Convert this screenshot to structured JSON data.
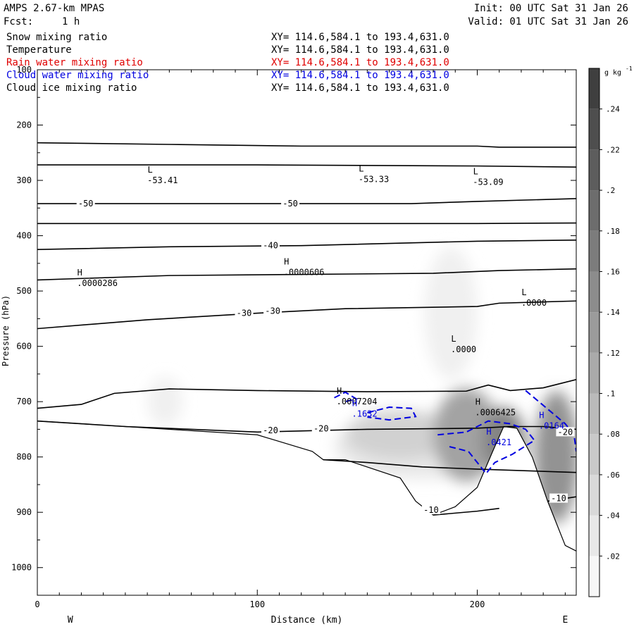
{
  "header": {
    "model": "AMPS 2.67-km MPAS",
    "forecast_label": "Fcst:",
    "forecast_value": "1 h",
    "init": "Init: 00 UTC Sat 31 Jan 26",
    "valid": "Valid: 01 UTC Sat 31 Jan 26"
  },
  "variables": [
    {
      "name": "Snow mixing ratio",
      "xy": "XY= 114.6,584.1 to 193.4,631.0",
      "color": "#000000"
    },
    {
      "name": "Temperature",
      "xy": "XY= 114.6,584.1 to 193.4,631.0",
      "color": "#000000"
    },
    {
      "name": "Rain water mixing ratio",
      "xy": "XY= 114.6,584.1 to 193.4,631.0",
      "color": "#e00000"
    },
    {
      "name": "Cloud water mixing ratio",
      "xy": "XY= 114.6,584.1 to 193.4,631.0",
      "color": "#0000e0"
    },
    {
      "name": "Cloud ice mixing ratio",
      "xy": "XY= 114.6,584.1 to 193.4,631.0",
      "color": "#000000"
    }
  ],
  "chart_data": {
    "type": "contour-cross-section",
    "xlabel": "Distance (km)",
    "ylabel": "Pressure (hPa)",
    "xlim": [
      0,
      245
    ],
    "ylim": [
      1050,
      100
    ],
    "x_ticks": [
      "0",
      "100",
      "200"
    ],
    "x_tick_values": [
      0,
      100,
      200
    ],
    "y_ticks": [
      "100",
      "200",
      "300",
      "400",
      "500",
      "600",
      "700",
      "800",
      "900",
      "1000"
    ],
    "y_tick_values": [
      100,
      200,
      300,
      400,
      500,
      600,
      700,
      800,
      900,
      1000
    ],
    "x_end_labels": {
      "left": "W",
      "right": "E"
    },
    "colorbar": {
      "unit": "g kg",
      "unit_exp": "-1",
      "vmax": 0.26,
      "tick_labels": [
        ".02",
        ".04",
        ".06",
        ".08",
        ".1",
        ".12",
        ".14",
        ".16",
        ".18",
        ".2",
        ".22",
        ".24"
      ],
      "tick_values": [
        0.02,
        0.04,
        0.06,
        0.08,
        0.1,
        0.12,
        0.14,
        0.16,
        0.18,
        0.2,
        0.22,
        0.24
      ]
    },
    "terrain": [
      [
        0,
        1050
      ],
      [
        0,
        735
      ],
      [
        40,
        745
      ],
      [
        100,
        760
      ],
      [
        125,
        790
      ],
      [
        130,
        805
      ],
      [
        140,
        805
      ],
      [
        165,
        838
      ],
      [
        172,
        880
      ],
      [
        180,
        905
      ],
      [
        190,
        890
      ],
      [
        200,
        855
      ],
      [
        207,
        790
      ],
      [
        212,
        745
      ],
      [
        218,
        748
      ],
      [
        225,
        800
      ],
      [
        232,
        880
      ],
      [
        240,
        960
      ],
      [
        245,
        970
      ],
      [
        245,
        1050
      ]
    ],
    "temperature_contours": [
      {
        "points": [
          [
            0,
            232
          ],
          [
            60,
            235
          ],
          [
            120,
            238
          ],
          [
            200,
            238
          ],
          [
            210,
            240
          ],
          [
            245,
            240
          ]
        ]
      },
      {
        "points": [
          [
            0,
            272
          ],
          [
            100,
            272
          ],
          [
            200,
            274
          ],
          [
            245,
            276
          ]
        ]
      },
      {
        "points": [
          [
            0,
            342
          ],
          [
            100,
            342
          ],
          [
            170,
            342
          ],
          [
            200,
            338
          ],
          [
            245,
            333
          ]
        ]
      },
      {
        "points": [
          [
            0,
            378
          ],
          [
            100,
            378
          ],
          [
            200,
            378
          ],
          [
            245,
            377
          ]
        ]
      },
      {
        "points": [
          [
            0,
            425
          ],
          [
            60,
            420
          ],
          [
            120,
            418
          ],
          [
            200,
            410
          ],
          [
            245,
            408
          ]
        ]
      },
      {
        "points": [
          [
            0,
            480
          ],
          [
            60,
            472
          ],
          [
            120,
            470
          ],
          [
            180,
            468
          ],
          [
            210,
            463
          ],
          [
            245,
            460
          ]
        ]
      },
      {
        "points": [
          [
            0,
            568
          ],
          [
            50,
            552
          ],
          [
            100,
            540
          ],
          [
            140,
            532
          ],
          [
            200,
            528
          ],
          [
            210,
            522
          ],
          [
            245,
            518
          ]
        ]
      },
      {
        "points": [
          [
            0,
            712
          ],
          [
            20,
            705
          ],
          [
            35,
            685
          ],
          [
            60,
            677
          ],
          [
            100,
            680
          ],
          [
            150,
            682
          ],
          [
            195,
            681
          ],
          [
            205,
            670
          ],
          [
            215,
            680
          ],
          [
            230,
            675
          ],
          [
            245,
            660
          ]
        ]
      },
      {
        "points": [
          [
            0,
            735
          ],
          [
            40,
            745
          ],
          [
            100,
            755
          ],
          [
            150,
            750
          ],
          [
            200,
            748
          ],
          [
            215,
            745
          ],
          [
            230,
            745
          ],
          [
            245,
            750
          ]
        ]
      },
      {
        "points": [
          [
            130,
            805
          ],
          [
            150,
            810
          ],
          [
            175,
            818
          ],
          [
            200,
            822
          ],
          [
            245,
            828
          ]
        ]
      },
      {
        "points": [
          [
            180,
            905
          ],
          [
            200,
            898
          ],
          [
            210,
            893
          ]
        ]
      },
      {
        "points": [
          [
            232,
            880
          ],
          [
            240,
            875
          ],
          [
            245,
            872
          ]
        ]
      }
    ],
    "snow_blobs": [
      {
        "cx": 175,
        "cy": 780,
        "rx": 40,
        "ry": 60,
        "value": 0.03
      },
      {
        "cx": 165,
        "cy": 760,
        "rx": 25,
        "ry": 45,
        "value": 0.06
      },
      {
        "cx": 195,
        "cy": 760,
        "rx": 15,
        "ry": 85,
        "value": 0.12
      },
      {
        "cx": 212,
        "cy": 770,
        "rx": 10,
        "ry": 60,
        "value": 0.16
      },
      {
        "cx": 236,
        "cy": 800,
        "rx": 10,
        "ry": 120,
        "value": 0.14
      },
      {
        "cx": 188,
        "cy": 540,
        "rx": 12,
        "ry": 120,
        "value": 0.02
      },
      {
        "cx": 58,
        "cy": 700,
        "rx": 8,
        "ry": 45,
        "value": 0.02
      }
    ],
    "cloud_water_contours": [
      {
        "points": [
          [
            135,
            693
          ],
          [
            140,
            683
          ],
          [
            145,
            695
          ],
          [
            140,
            700
          ]
        ]
      },
      {
        "points": [
          [
            150,
            720
          ],
          [
            160,
            710
          ],
          [
            170,
            712
          ],
          [
            172,
            727
          ],
          [
            160,
            733
          ],
          [
            150,
            728
          ]
        ]
      },
      {
        "points": [
          [
            182,
            760
          ],
          [
            195,
            755
          ],
          [
            205,
            735
          ],
          [
            215,
            740
          ],
          [
            222,
            750
          ],
          [
            226,
            770
          ],
          [
            216,
            795
          ],
          [
            208,
            810
          ],
          [
            204,
            830
          ],
          [
            200,
            810
          ],
          [
            196,
            790
          ],
          [
            186,
            780
          ]
        ]
      },
      {
        "points": [
          [
            222,
            680
          ],
          [
            228,
            700
          ],
          [
            234,
            720
          ],
          [
            240,
            740
          ],
          [
            244,
            760
          ],
          [
            245,
            790
          ]
        ]
      }
    ],
    "labels": [
      {
        "x": 50,
        "y": 296,
        "text": "L",
        "value": "-53.41",
        "color": "#000000"
      },
      {
        "x": 146,
        "y": 294,
        "text": "L",
        "value": "-53.33",
        "color": "#000000"
      },
      {
        "x": 198,
        "y": 299,
        "text": "L",
        "value": "-53.09",
        "color": "#000000"
      },
      {
        "x": 112,
        "y": 462,
        "text": "H",
        "value": ".0000606",
        "color": "#000000"
      },
      {
        "x": 18,
        "y": 482,
        "text": "H",
        "value": ".0000286",
        "color": "#000000"
      },
      {
        "x": 220,
        "y": 518,
        "text": "L",
        "value": ".0000",
        "color": "#000000"
      },
      {
        "x": 188,
        "y": 602,
        "text": "L",
        "value": ".0000",
        "color": "#000000"
      },
      {
        "x": 136,
        "y": 696,
        "text": "H",
        "value": ".0007204",
        "color": "#000000"
      },
      {
        "x": 199,
        "y": 716,
        "text": "H",
        "value": ".0006425",
        "color": "#000000"
      },
      {
        "x": 143,
        "y": 718,
        "text": "H",
        "value": ".1632",
        "color": "#0000e0"
      },
      {
        "x": 204,
        "y": 770,
        "text": "H",
        "value": ".0421",
        "color": "#0000e0"
      },
      {
        "x": 228,
        "y": 740,
        "text": "H",
        "value": ".0164",
        "color": "#0000e0"
      }
    ],
    "contour_values": [
      {
        "x": 22,
        "y": 342,
        "text": "-50"
      },
      {
        "x": 115,
        "y": 342,
        "text": "-50"
      },
      {
        "x": 106,
        "y": 418,
        "text": "-40"
      },
      {
        "x": 94,
        "y": 540,
        "text": "-30"
      },
      {
        "x": 107,
        "y": 536,
        "text": "-30"
      },
      {
        "x": 106,
        "y": 752,
        "text": "-20"
      },
      {
        "x": 129,
        "y": 749,
        "text": "-20"
      },
      {
        "x": 240,
        "y": 755,
        "text": "-20"
      },
      {
        "x": 179,
        "y": 896,
        "text": "-10"
      },
      {
        "x": 237,
        "y": 875,
        "text": "-10"
      }
    ]
  }
}
